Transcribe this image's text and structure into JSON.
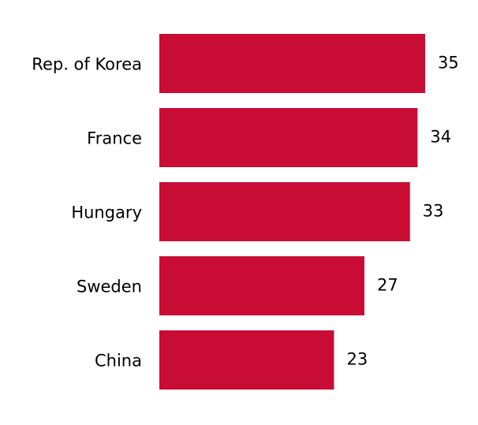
{
  "chart_data": {
    "type": "bar",
    "orientation": "horizontal",
    "categories": [
      "Rep. of Korea",
      "France",
      "Hungary",
      "Sweden",
      "China"
    ],
    "values": [
      35,
      34,
      33,
      27,
      23
    ],
    "color": "#c90c33"
  }
}
